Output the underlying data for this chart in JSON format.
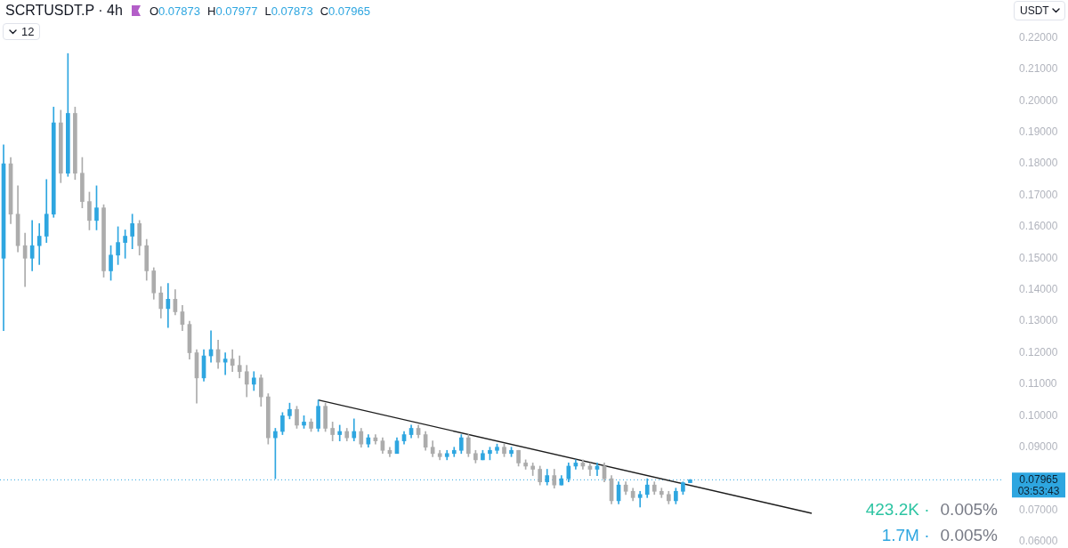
{
  "chart_data": {
    "type": "candlestick",
    "title": "SCRTUSDT.P · 4h",
    "subtitle": "O0.07873 H0.07977 L0.07873 C0.07965",
    "ylabel": "USDT",
    "categories": [
      null,
      null,
      null,
      null,
      null,
      null,
      null,
      null,
      null,
      null,
      null,
      null,
      null,
      null,
      null,
      null,
      null,
      null,
      null,
      null,
      null,
      null,
      null,
      null,
      null,
      null,
      null,
      null,
      null,
      null,
      null,
      null,
      null,
      null,
      null,
      null,
      null,
      null,
      null,
      null,
      null,
      null,
      null,
      null,
      null,
      null,
      null,
      null,
      null,
      null,
      null,
      null,
      null,
      null,
      null,
      null,
      null,
      null,
      null,
      null,
      null,
      null,
      null,
      null,
      null,
      null,
      null,
      null,
      null,
      null,
      null,
      null,
      null,
      null,
      null,
      null,
      null,
      null,
      null,
      null,
      null,
      null,
      null,
      null,
      null,
      null,
      null,
      null,
      null,
      null,
      null,
      null,
      null,
      null,
      null,
      null,
      null,
      null,
      null,
      null,
      null,
      null,
      null,
      null,
      null,
      null,
      null,
      null,
      null,
      null,
      null,
      null,
      null,
      null,
      null,
      null,
      null,
      null,
      null,
      null,
      null,
      null,
      null,
      null,
      null,
      null,
      null,
      null,
      null,
      null,
      null,
      null,
      null,
      null,
      null,
      null,
      null,
      null,
      null,
      null
    ],
    "ohlc": [
      [
        0.15,
        0.186,
        0.127,
        0.18
      ],
      [
        0.18,
        0.182,
        0.161,
        0.164
      ],
      [
        0.164,
        0.173,
        0.152,
        0.154
      ],
      [
        0.154,
        0.158,
        0.141,
        0.15
      ],
      [
        0.15,
        0.162,
        0.146,
        0.154
      ],
      [
        0.154,
        0.161,
        0.148,
        0.157
      ],
      [
        0.157,
        0.175,
        0.155,
        0.164
      ],
      [
        0.164,
        0.198,
        0.163,
        0.193
      ],
      [
        0.193,
        0.197,
        0.174,
        0.177
      ],
      [
        0.177,
        0.215,
        0.176,
        0.196
      ],
      [
        0.196,
        0.198,
        0.175,
        0.177
      ],
      [
        0.177,
        0.182,
        0.166,
        0.168
      ],
      [
        0.168,
        0.171,
        0.159,
        0.162
      ],
      [
        0.162,
        0.173,
        0.159,
        0.166
      ],
      [
        0.166,
        0.167,
        0.144,
        0.146
      ],
      [
        0.146,
        0.154,
        0.143,
        0.151
      ],
      [
        0.151,
        0.16,
        0.148,
        0.155
      ],
      [
        0.155,
        0.159,
        0.15,
        0.157
      ],
      [
        0.157,
        0.164,
        0.153,
        0.161
      ],
      [
        0.161,
        0.162,
        0.151,
        0.154
      ],
      [
        0.154,
        0.156,
        0.143,
        0.146
      ],
      [
        0.146,
        0.147,
        0.137,
        0.139
      ],
      [
        0.139,
        0.141,
        0.131,
        0.134
      ],
      [
        0.134,
        0.142,
        0.128,
        0.137
      ],
      [
        0.137,
        0.14,
        0.132,
        0.133
      ],
      [
        0.133,
        0.135,
        0.127,
        0.129
      ],
      [
        0.129,
        0.13,
        0.118,
        0.12
      ],
      [
        0.12,
        0.121,
        0.104,
        0.112
      ],
      [
        0.112,
        0.121,
        0.111,
        0.119
      ],
      [
        0.119,
        0.127,
        0.117,
        0.121
      ],
      [
        0.121,
        0.124,
        0.115,
        0.117
      ],
      [
        0.117,
        0.12,
        0.113,
        0.118
      ],
      [
        0.118,
        0.121,
        0.114,
        0.116
      ],
      [
        0.116,
        0.119,
        0.112,
        0.114
      ],
      [
        0.114,
        0.116,
        0.106,
        0.11
      ],
      [
        0.11,
        0.114,
        0.108,
        0.112
      ],
      [
        0.112,
        0.113,
        0.103,
        0.106
      ],
      [
        0.106,
        0.107,
        0.091,
        0.093
      ],
      [
        0.093,
        0.096,
        0.08,
        0.095
      ],
      [
        0.095,
        0.101,
        0.094,
        0.1
      ],
      [
        0.1,
        0.104,
        0.099,
        0.102
      ],
      [
        0.102,
        0.103,
        0.096,
        0.097
      ],
      [
        0.097,
        0.1,
        0.096,
        0.098
      ],
      [
        0.098,
        0.099,
        0.095,
        0.096
      ],
      [
        0.096,
        0.105,
        0.095,
        0.103
      ],
      [
        0.103,
        0.104,
        0.095,
        0.096
      ],
      [
        0.096,
        0.098,
        0.092,
        0.094
      ],
      [
        0.094,
        0.097,
        0.092,
        0.095
      ],
      [
        0.095,
        0.096,
        0.092,
        0.093
      ],
      [
        0.093,
        0.099,
        0.092,
        0.095
      ],
      [
        0.095,
        0.096,
        0.09,
        0.091
      ],
      [
        0.091,
        0.094,
        0.09,
        0.093
      ],
      [
        0.093,
        0.094,
        0.091,
        0.092
      ],
      [
        0.092,
        0.093,
        0.088,
        0.089
      ],
      [
        0.089,
        0.09,
        0.087,
        0.088
      ],
      [
        0.088,
        0.093,
        0.088,
        0.092
      ],
      [
        0.092,
        0.095,
        0.091,
        0.094
      ],
      [
        0.094,
        0.097,
        0.093,
        0.096
      ],
      [
        0.096,
        0.097,
        0.093,
        0.094
      ],
      [
        0.094,
        0.095,
        0.089,
        0.09
      ],
      [
        0.09,
        0.092,
        0.087,
        0.088
      ],
      [
        0.088,
        0.089,
        0.086,
        0.087
      ],
      [
        0.087,
        0.089,
        0.086,
        0.088
      ],
      [
        0.088,
        0.09,
        0.087,
        0.089
      ],
      [
        0.089,
        0.094,
        0.088,
        0.093
      ],
      [
        0.093,
        0.094,
        0.087,
        0.088
      ],
      [
        0.088,
        0.089,
        0.085,
        0.086
      ],
      [
        0.086,
        0.089,
        0.086,
        0.088
      ],
      [
        0.088,
        0.09,
        0.086,
        0.089
      ],
      [
        0.089,
        0.091,
        0.088,
        0.09
      ],
      [
        0.09,
        0.091,
        0.087,
        0.088
      ],
      [
        0.088,
        0.09,
        0.087,
        0.089
      ],
      [
        0.089,
        0.089,
        0.084,
        0.085
      ],
      [
        0.085,
        0.086,
        0.083,
        0.084
      ],
      [
        0.084,
        0.085,
        0.081,
        0.083
      ],
      [
        0.083,
        0.084,
        0.078,
        0.079
      ],
      [
        0.079,
        0.083,
        0.078,
        0.081
      ],
      [
        0.081,
        0.083,
        0.077,
        0.078
      ],
      [
        0.078,
        0.081,
        0.078,
        0.08
      ],
      [
        0.08,
        0.085,
        0.079,
        0.084
      ],
      [
        0.084,
        0.086,
        0.083,
        0.085
      ],
      [
        0.085,
        0.086,
        0.083,
        0.084
      ],
      [
        0.084,
        0.085,
        0.081,
        0.083
      ],
      [
        0.083,
        0.085,
        0.081,
        0.084
      ],
      [
        0.084,
        0.085,
        0.079,
        0.08
      ],
      [
        0.08,
        0.081,
        0.072,
        0.073
      ],
      [
        0.073,
        0.079,
        0.072,
        0.078
      ],
      [
        0.078,
        0.079,
        0.075,
        0.076
      ],
      [
        0.076,
        0.077,
        0.073,
        0.074
      ],
      [
        0.074,
        0.076,
        0.071,
        0.075
      ],
      [
        0.075,
        0.08,
        0.074,
        0.078
      ],
      [
        0.078,
        0.079,
        0.075,
        0.076
      ],
      [
        0.076,
        0.077,
        0.074,
        0.075
      ],
      [
        0.075,
        0.076,
        0.072,
        0.073
      ],
      [
        0.073,
        0.077,
        0.072,
        0.076
      ],
      [
        0.076,
        0.079,
        0.075,
        0.07873
      ],
      [
        0.07873,
        0.07977,
        0.07873,
        0.07965
      ],
      null,
      null,
      null,
      null,
      null,
      null,
      null,
      null,
      null,
      null,
      null,
      null,
      null,
      null,
      null,
      null,
      null,
      null,
      null,
      null,
      null,
      null,
      null,
      null,
      null,
      null,
      null,
      null,
      null,
      null,
      null,
      null,
      null,
      null,
      null,
      null,
      null,
      null,
      null,
      null,
      null,
      null,
      null
    ],
    "colors": [
      "#2ea6e0",
      "#acacac",
      "#acacac",
      "#acacac",
      "#2ea6e0",
      "#2ea6e0",
      "#2ea6e0",
      "#2ea6e0",
      "#acacac",
      "#2ea6e0",
      "#acacac",
      "#acacac",
      "#acacac",
      "#2ea6e0",
      "#acacac",
      "#2ea6e0",
      "#2ea6e0",
      "#2ea6e0",
      "#2ea6e0",
      "#acacac",
      "#acacac",
      "#acacac",
      "#acacac",
      "#2ea6e0",
      "#acacac",
      "#acacac",
      "#acacac",
      "#acacac",
      "#2ea6e0",
      "#2ea6e0",
      "#acacac",
      "#2ea6e0",
      "#acacac",
      "#acacac",
      "#acacac",
      "#2ea6e0",
      "#acacac",
      "#acacac",
      "#2ea6e0",
      "#2ea6e0",
      "#2ea6e0",
      "#acacac",
      "#2ea6e0",
      "#acacac",
      "#2ea6e0",
      "#acacac",
      "#acacac",
      "#2ea6e0",
      "#acacac",
      "#2ea6e0",
      "#acacac",
      "#2ea6e0",
      "#acacac",
      "#acacac",
      "#acacac",
      "#2ea6e0",
      "#2ea6e0",
      "#2ea6e0",
      "#acacac",
      "#acacac",
      "#acacac",
      "#acacac",
      "#2ea6e0",
      "#2ea6e0",
      "#2ea6e0",
      "#acacac",
      "#acacac",
      "#2ea6e0",
      "#2ea6e0",
      "#2ea6e0",
      "#acacac",
      "#2ea6e0",
      "#acacac",
      "#acacac",
      "#acacac",
      "#acacac",
      "#2ea6e0",
      "#acacac",
      "#2ea6e0",
      "#2ea6e0",
      "#2ea6e0",
      "#acacac",
      "#acacac",
      "#2ea6e0",
      "#acacac",
      "#acacac",
      "#2ea6e0",
      "#acacac",
      "#acacac",
      "#2ea6e0",
      "#2ea6e0",
      "#acacac",
      "#acacac",
      "#acacac",
      "#2ea6e0",
      "#2ea6e0",
      "#2ea6e0",
      null,
      null,
      null,
      null,
      null,
      null,
      null,
      null,
      null,
      null,
      null,
      null,
      null,
      null,
      null,
      null,
      null,
      null,
      null,
      null,
      null,
      null,
      null,
      null,
      null,
      null,
      null,
      null,
      null,
      null,
      null,
      null,
      null,
      null,
      null,
      null,
      null,
      null,
      null,
      null,
      null,
      null,
      null
    ],
    "series": [
      {
        "type": "line",
        "color": "#1c1c1c",
        "values": [
          null,
          null,
          null,
          null,
          null,
          null,
          null,
          null,
          null,
          null,
          null,
          null,
          null,
          null,
          null,
          null,
          null,
          null,
          null,
          null,
          null,
          null,
          null,
          null,
          null,
          null,
          null,
          null,
          null,
          null,
          null,
          null,
          null,
          null,
          null,
          null,
          null,
          null,
          null,
          null,
          null,
          null,
          null,
          null,
          0.105,
          null,
          null,
          null,
          null,
          null,
          null,
          null,
          null,
          null,
          null,
          null,
          null,
          null,
          null,
          null,
          null,
          null,
          null,
          null,
          null,
          null,
          null,
          null,
          null,
          null,
          null,
          null,
          null,
          null,
          null,
          null,
          null,
          null,
          null,
          null,
          null,
          null,
          null,
          null,
          null,
          null,
          null,
          null,
          null,
          null,
          null,
          null,
          null,
          null,
          null,
          null,
          null,
          null,
          null,
          null,
          null,
          null,
          null,
          null,
          null,
          null,
          null,
          null,
          null,
          null,
          null,
          null,
          null,
          0.069,
          null,
          null,
          null,
          null,
          null,
          null,
          null,
          null,
          null,
          null,
          null,
          null,
          null,
          null,
          null,
          null,
          null,
          null,
          null,
          null,
          null,
          null,
          null,
          null,
          null,
          null
        ]
      }
    ],
    "ylim": [
      0.058,
      0.232
    ],
    "yticks": [
      {
        "value": 0.06,
        "label": "0.06000"
      },
      {
        "value": 0.07,
        "label": "0.07000"
      },
      {
        "value": 0.09,
        "label": "0.09000"
      },
      {
        "value": 0.1,
        "label": "0.10000"
      },
      {
        "value": 0.11,
        "label": "0.11000"
      },
      {
        "value": 0.12,
        "label": "0.12000"
      },
      {
        "value": 0.13,
        "label": "0.13000"
      },
      {
        "value": 0.14,
        "label": "0.14000"
      },
      {
        "value": 0.15,
        "label": "0.15000"
      },
      {
        "value": 0.16,
        "label": "0.16000"
      },
      {
        "value": 0.17,
        "label": "0.17000"
      },
      {
        "value": 0.18,
        "label": "0.18000"
      },
      {
        "value": 0.19,
        "label": "0.19000"
      },
      {
        "value": 0.2,
        "label": "0.20000"
      },
      {
        "value": 0.21,
        "label": "0.21000"
      },
      {
        "value": 0.22,
        "label": "0.22000"
      }
    ],
    "ref_lines": [
      {
        "axis": "y",
        "value": 0.07965,
        "label": "0.07965",
        "color": "#2ea6e0",
        "line_style": "dotted"
      }
    ],
    "annotations": [
      "12",
      "03:53:43",
      "423.2K ·",
      "0.005%",
      "1.7M ·",
      "0.005%"
    ],
    "tick_labels": "y"
  }
}
